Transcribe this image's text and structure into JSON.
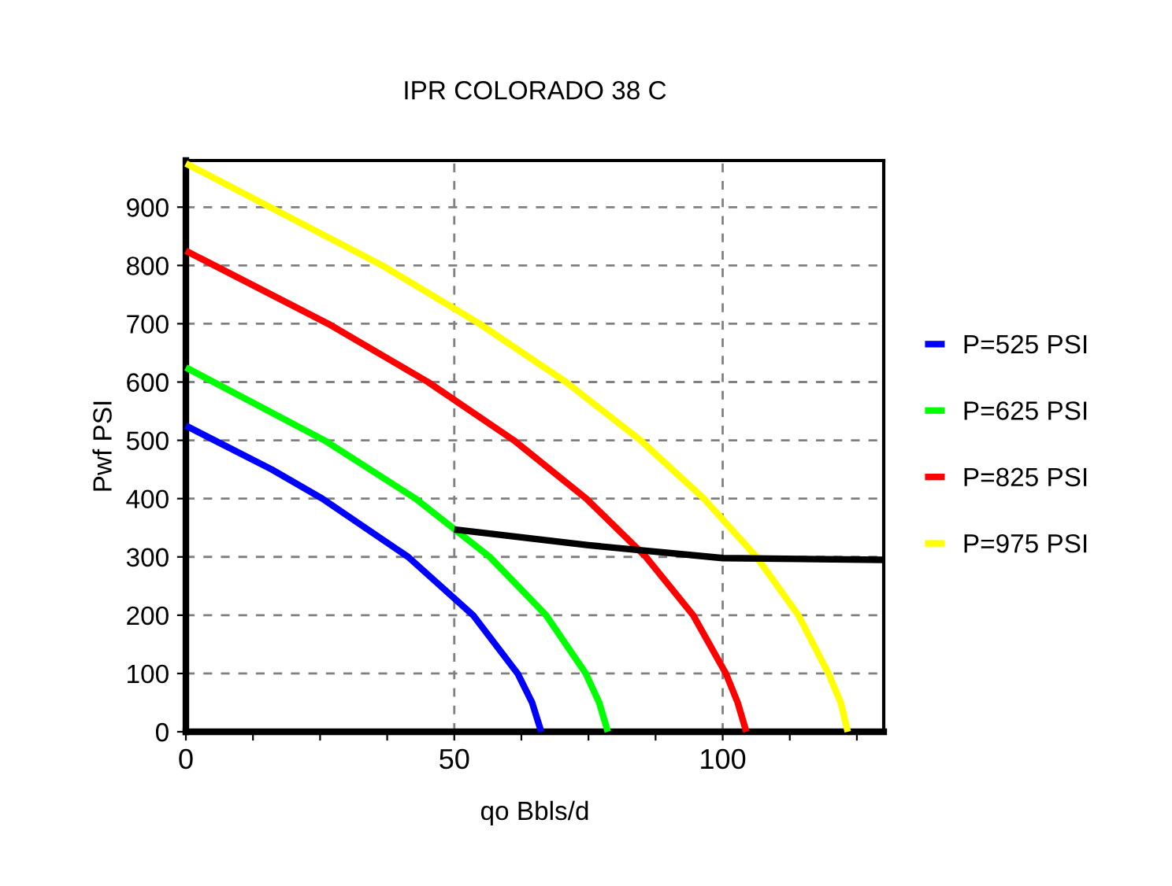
{
  "chart_data": {
    "type": "line",
    "title": "IPR COLORADO 38 C",
    "xlabel": "qo Bbls/d",
    "ylabel": "Pwf PSI",
    "series": [
      {
        "name": "P=525 PSI",
        "color": "#0000ff",
        "x": [
          0,
          16.0,
          25.4,
          41.4,
          53.5,
          61.8,
          64.5,
          66.2
        ],
        "values": [
          525,
          450,
          400,
          300,
          200,
          100,
          50,
          0
        ]
      },
      {
        "name": "P=625 PSI",
        "color": "#00ff00",
        "x": [
          0,
          25.8,
          42.8,
          56.6,
          67.1,
          74.5,
          77.0,
          78.6
        ],
        "values": [
          625,
          500,
          400,
          300,
          200,
          100,
          50,
          0
        ]
      },
      {
        "name": "P=825 PSI",
        "color": "#ff0000",
        "x": [
          0,
          26.5,
          45.1,
          61.1,
          74.6,
          85.7,
          94.5,
          100.6,
          102.8,
          104.4
        ],
        "values": [
          825,
          700,
          600,
          500,
          400,
          300,
          200,
          100,
          50,
          0
        ]
      },
      {
        "name": "P=975 PSI",
        "color": "#ffff00",
        "x": [
          0,
          36.6,
          54.7,
          70.8,
          84.7,
          96.5,
          106.3,
          114.1,
          119.7,
          122.0,
          123.3
        ],
        "values": [
          975,
          800,
          700,
          600,
          500,
          400,
          300,
          200,
          100,
          50,
          0
        ]
      },
      {
        "color": "#000000",
        "x": [
          50,
          75,
          100,
          130
        ],
        "values": [
          347,
          320,
          298,
          295
        ]
      }
    ],
    "xlim": [
      0,
      130
    ],
    "ylim": [
      0,
      980
    ],
    "xticks": [
      0,
      {
        "value": 12.5,
        "label": null
      },
      {
        "value": 25,
        "label": null
      },
      {
        "value": 37.5,
        "label": null
      },
      50,
      {
        "value": 62.5,
        "label": null
      },
      {
        "value": 75,
        "label": null
      },
      {
        "value": 87.5,
        "label": null
      },
      100,
      {
        "value": 112.5,
        "label": null
      },
      {
        "value": 125,
        "label": null
      }
    ],
    "yticks": [
      0,
      100,
      200,
      300,
      400,
      500,
      600,
      700,
      800,
      900
    ],
    "grid": true,
    "legend": "right",
    "marker": "none",
    "line_style": "solid"
  }
}
